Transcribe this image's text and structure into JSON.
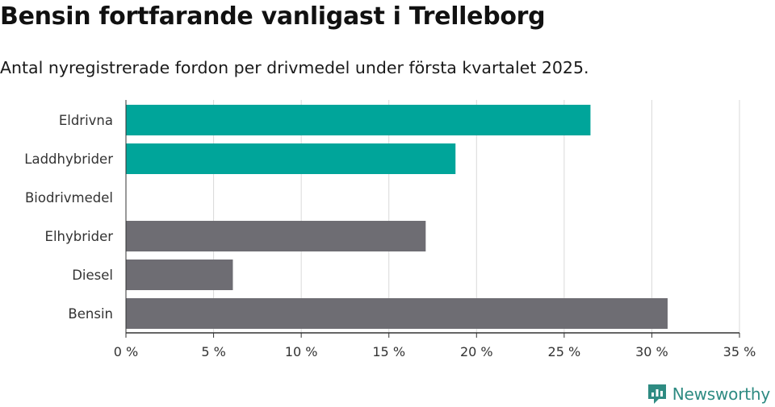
{
  "title": "Bensin fortfarande vanligast i Trelleborg",
  "subtitle": "Antal nyregistrerade fordon per drivmedel under första kvartalet 2025.",
  "brand": {
    "name": "Newsworthy",
    "icon": "newsworthy-logo-icon",
    "color": "#2e8b82"
  },
  "colors": {
    "highlight": "#00a59a",
    "default": "#6e6d73",
    "grid": "#d9d9d9",
    "axis": "#333333"
  },
  "chart_data": {
    "type": "bar",
    "orientation": "horizontal",
    "categories": [
      "Eldrivna",
      "Laddhybrider",
      "Biodrivmedel",
      "Elhybrider",
      "Diesel",
      "Bensin"
    ],
    "values": [
      26.5,
      18.8,
      0,
      17.1,
      6.1,
      30.9
    ],
    "bar_colors": [
      "#00a59a",
      "#00a59a",
      "#00a59a",
      "#6e6d73",
      "#6e6d73",
      "#6e6d73"
    ],
    "xlim": [
      0,
      35
    ],
    "xticks": [
      0,
      5,
      10,
      15,
      20,
      25,
      30,
      35
    ],
    "xtick_labels": [
      "0 %",
      "5 %",
      "10 %",
      "15 %",
      "20 %",
      "25 %",
      "30 %",
      "35 %"
    ],
    "grid": true,
    "legend": "none"
  }
}
